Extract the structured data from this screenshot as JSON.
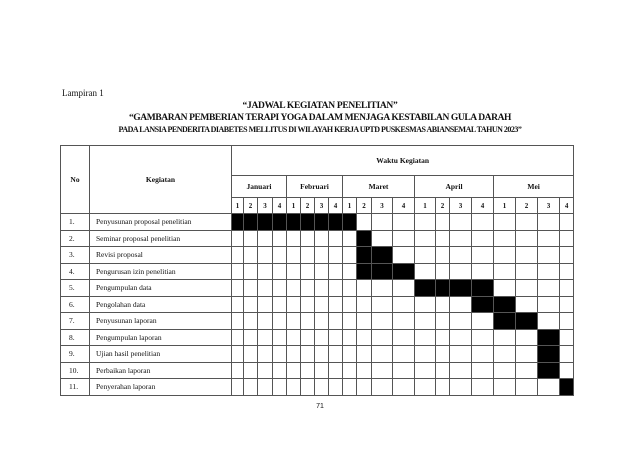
{
  "lampiran": "Lampiran 1",
  "title_line1": "“JADWAL KEGIATAN PENELITIAN”",
  "title_line2": "“GAMBARAN PEMBERIAN TERAPI YOGA DALAM MENJAGA KESTABILAN GULA DARAH",
  "title_line3": "PADA LANSIA PENDERITA DIABETES MELLITUS DI WILAYAH KERJA UPTD PUSKESMAS ABIANSEMAL TAHUN 2023”",
  "table": {
    "col_no": "No",
    "col_activity": "Kegiatan",
    "col_time": "Waktu Kegiatan",
    "months": [
      "Januari",
      "Februari",
      "Maret",
      "April",
      "Mei"
    ],
    "weeks": [
      "1",
      "2",
      "3",
      "4"
    ],
    "rows": [
      {
        "no": "1.",
        "activity": "Penyusunan proposal penelitian",
        "weeks": [
          0,
          1,
          2,
          3,
          4,
          5,
          6,
          7,
          8
        ]
      },
      {
        "no": "2.",
        "activity": "Seminar proposal penelitian",
        "weeks": [
          9
        ]
      },
      {
        "no": "3.",
        "activity": "Revisi proposal",
        "weeks": [
          9,
          10
        ]
      },
      {
        "no": "4.",
        "activity": "Pengurusan izin penelitian",
        "weeks": [
          9,
          10,
          11
        ]
      },
      {
        "no": "5.",
        "activity": "Pengumpulan data",
        "weeks": [
          12,
          13,
          14,
          15
        ]
      },
      {
        "no": "6.",
        "activity": "Pengolahan data",
        "weeks": [
          15,
          16
        ]
      },
      {
        "no": "7.",
        "activity": "Penyusunan laporan",
        "weeks": [
          16,
          17
        ]
      },
      {
        "no": "8.",
        "activity": "Pengumpulan laporan",
        "weeks": [
          18
        ]
      },
      {
        "no": "9.",
        "activity": "Ujian hasil penelitian",
        "weeks": [
          18
        ]
      },
      {
        "no": "10.",
        "activity": "Perbaikan laporan",
        "weeks": [
          18
        ]
      },
      {
        "no": "11.",
        "activity": "Penyerahan laporan",
        "weeks": [
          19
        ]
      }
    ]
  },
  "page_number": "71"
}
